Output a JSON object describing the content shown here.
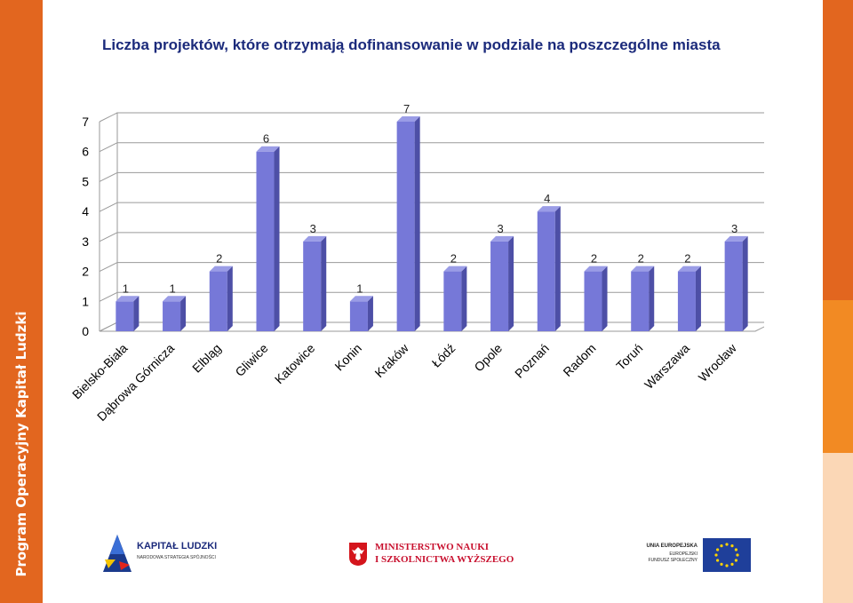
{
  "side_text": "Program Operacyjny Kapitał Ludzki",
  "footer": {
    "kapital": {
      "name": "KAPITAŁ LUDZKI",
      "subtitle": "NARODOWA STRATEGIA SPÓJNOŚCI"
    },
    "ministry": {
      "line1": "MINISTERSTWO NAUKI",
      "line2": "I SZKOLNICTWA WYŻSZEGO"
    },
    "ue": {
      "line1": "UNIA EUROPEJSKA",
      "line2": "EUROPEJSKI",
      "line3": "FUNDUSZ SPOŁECZNY"
    }
  },
  "colors": {
    "bar": "#7678d8",
    "bar_side": "#4d4fa6",
    "bar_top": "#9a9ce6",
    "accent": "#e2661f",
    "title": "#1b2a7b"
  },
  "chart_data": {
    "type": "bar",
    "title": "Liczba projektów, które otrzymają dofinansowanie w podziale na poszczególne miasta",
    "categories": [
      "Bielsko-Biała",
      "Dąbrowa Górnicza",
      "Elbląg",
      "Gliwice",
      "Katowice",
      "Konin",
      "Kraków",
      "Łódź",
      "Opole",
      "Poznań",
      "Radom",
      "Toruń",
      "Warszawa",
      "Wrocław"
    ],
    "values": [
      1,
      1,
      2,
      6,
      3,
      1,
      7,
      2,
      3,
      4,
      2,
      2,
      2,
      3
    ],
    "data_labels": [
      "1",
      "1",
      "2",
      "6",
      "3",
      "1",
      "7",
      "2",
      "3",
      "4",
      "2",
      "2",
      "2",
      "3"
    ],
    "yticks": [
      "0",
      "1",
      "2",
      "3",
      "4",
      "5",
      "6",
      "7"
    ],
    "ylim": [
      0,
      7
    ],
    "grid": true,
    "legend": "none",
    "xlabel": "",
    "ylabel": ""
  }
}
